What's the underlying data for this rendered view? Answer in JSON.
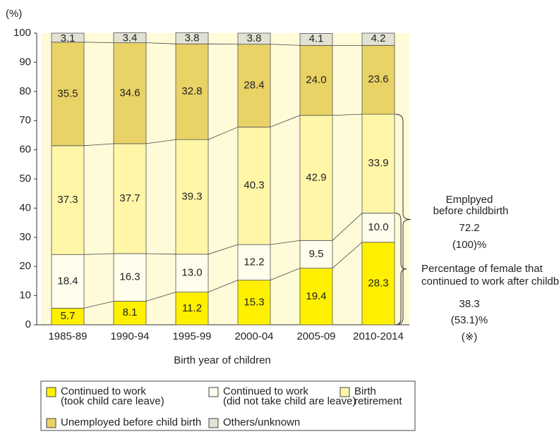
{
  "chart_data": {
    "type": "stacked_bar",
    "y_label": "(%)",
    "x_label": "Birth year of children",
    "categories": [
      "1985-89",
      "1990-94",
      "1995-99",
      "2000-04",
      "2005-09",
      "2010-2014"
    ],
    "series": [
      {
        "name": [
          "Continued to work",
          "(took child care leave)"
        ],
        "color": "#fff000",
        "values": [
          5.7,
          8.1,
          11.2,
          15.3,
          19.4,
          28.3
        ],
        "value_labels": [
          "5.7",
          "8.1",
          "11.2",
          "15.3",
          "19.4",
          "28.3"
        ]
      },
      {
        "name": [
          "Continued to work",
          "(did not take child are leave)"
        ],
        "color": "#fffdeb",
        "values": [
          18.4,
          16.3,
          13.0,
          12.2,
          9.5,
          10.0
        ],
        "value_labels": [
          "18.4",
          "16.3",
          "13.0",
          "12.2",
          "9.5",
          "10.0"
        ]
      },
      {
        "name": [
          "Birth",
          "retirement"
        ],
        "color": "#fff6a8",
        "values": [
          37.3,
          37.7,
          39.3,
          40.3,
          42.9,
          33.9
        ],
        "value_labels": [
          "37.3",
          "37.7",
          "39.3",
          "40.3",
          "42.9",
          "33.9"
        ]
      },
      {
        "name": [
          "Unemployed before child birth"
        ],
        "color": "#e9d266",
        "values": [
          35.5,
          34.6,
          32.8,
          28.4,
          24.0,
          23.6
        ],
        "value_labels": [
          "35.5",
          "34.6",
          "32.8",
          "28.4",
          "24.0",
          "23.6"
        ]
      },
      {
        "name": [
          "Others/unknown"
        ],
        "color": "#e2e2d4",
        "values": [
          3.1,
          3.4,
          3.8,
          3.8,
          4.1,
          4.2
        ],
        "value_labels": [
          "3.1",
          "3.4",
          "3.8",
          "3.8",
          "4.1",
          "4.2"
        ]
      }
    ],
    "ylim": [
      0,
      100
    ],
    "yticks": [
      0,
      10,
      20,
      30,
      40,
      50,
      60,
      70,
      80,
      90,
      100
    ],
    "annotations": [
      {
        "lines": [
          "Emplpyed",
          "before childbirth",
          "72.2",
          "(100)%"
        ]
      },
      {
        "lines": [
          "Percentage of female that",
          "continued to work after childbirth",
          "38.3",
          "(53.1)%",
          "(※)"
        ]
      }
    ]
  }
}
